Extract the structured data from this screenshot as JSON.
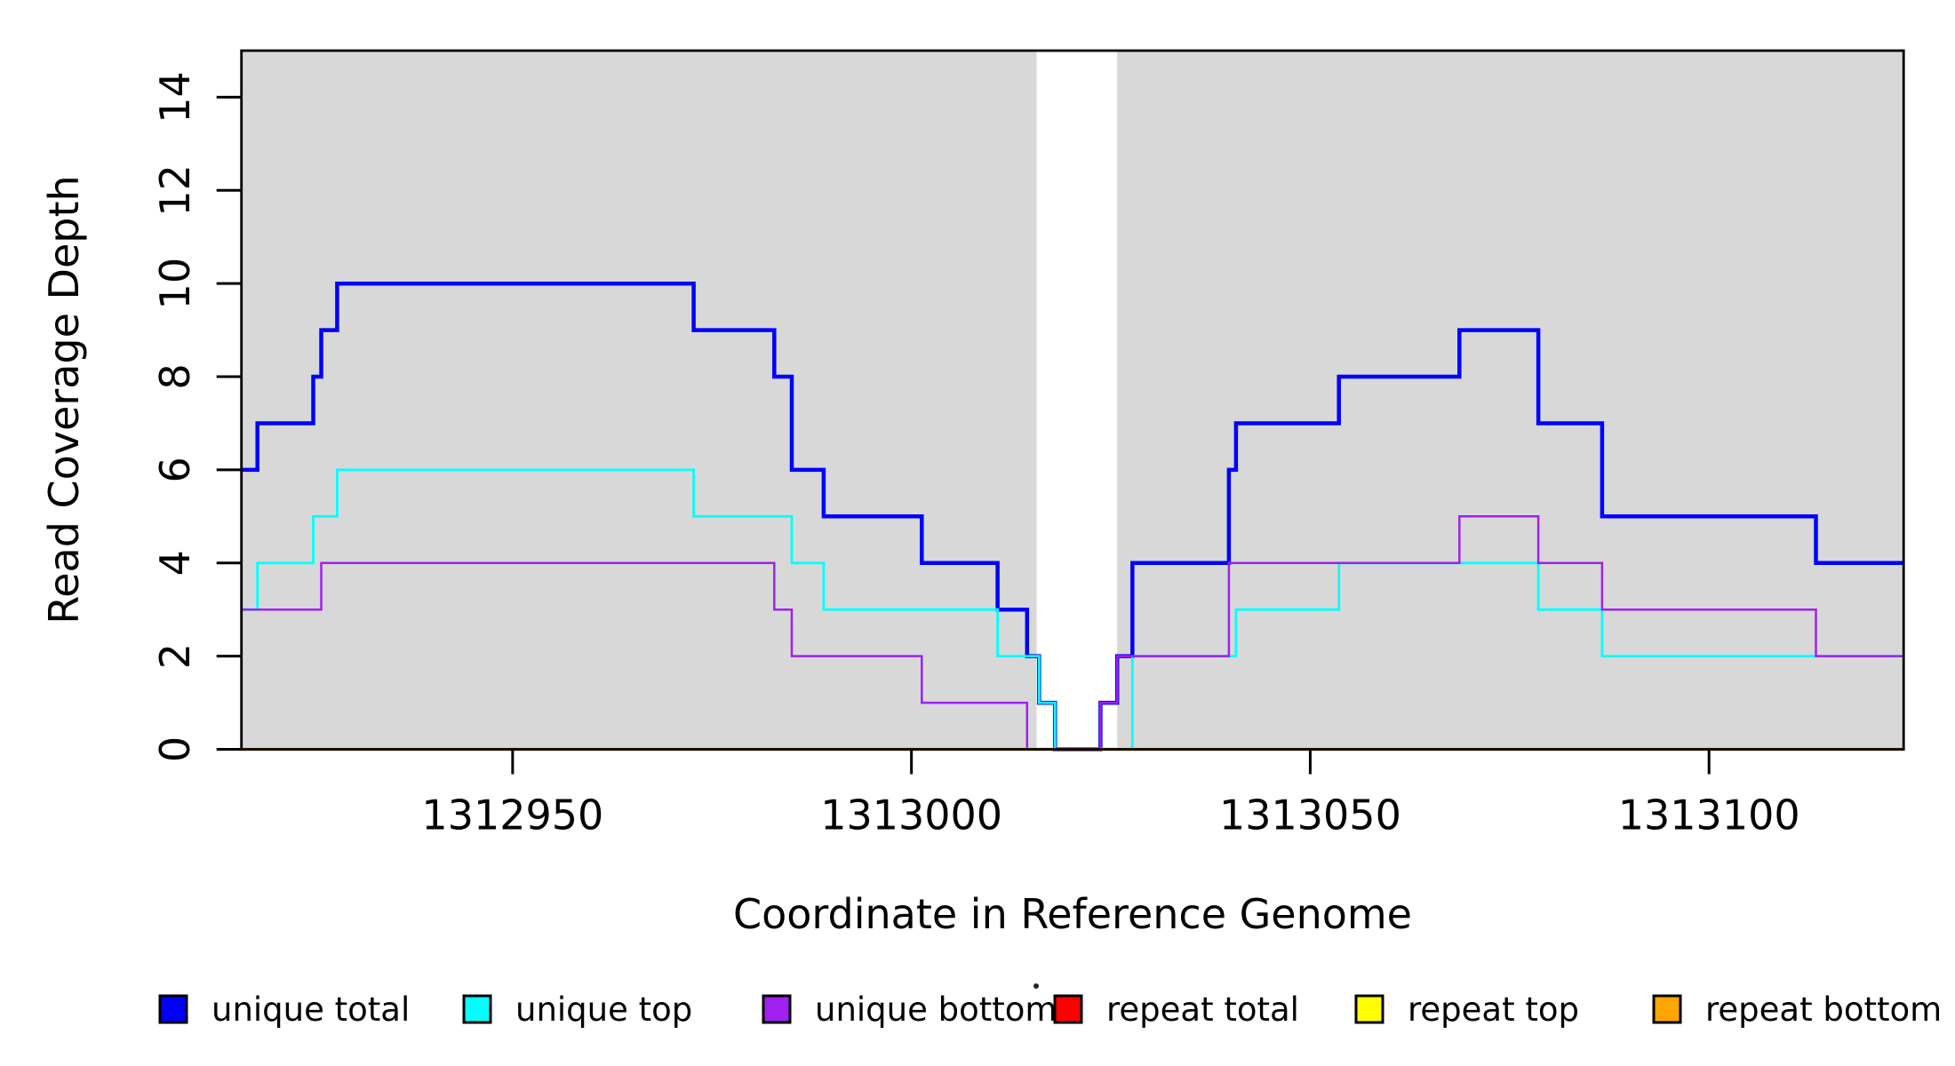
{
  "chart_data": {
    "type": "line",
    "subtype": "step-coverage",
    "title": "",
    "xlabel": "Coordinate in Reference Genome",
    "ylabel": "Read Coverage Depth",
    "xlim": [
      1312916,
      1313124.4
    ],
    "ylim": [
      0,
      15
    ],
    "xticks": [
      1312950,
      1313000,
      1313050,
      1313100
    ],
    "yticks": [
      0,
      2,
      4,
      6,
      8,
      10,
      12,
      14
    ],
    "grid": "off",
    "legend_position": "bottom",
    "background_color": "#D8D8D8",
    "shaded_regions": [
      [
        1312916,
        1313015.7
      ],
      [
        1313025.8,
        1313124.4
      ]
    ],
    "unshaded_gap": [
      1313015.7,
      1313025.8
    ],
    "series": [
      {
        "name": "unique total",
        "color": "#0000FF",
        "line_width": 4.5,
        "points": [
          [
            1312916,
            6
          ],
          [
            1312918,
            7
          ],
          [
            1312925,
            8
          ],
          [
            1312926,
            9
          ],
          [
            1312928,
            10
          ],
          [
            1312972.7,
            9
          ],
          [
            1312982.8,
            8
          ],
          [
            1312985,
            6
          ],
          [
            1312989,
            5
          ],
          [
            1313001.3,
            4
          ],
          [
            1313010.8,
            3
          ],
          [
            1313014.5,
            2
          ],
          [
            1313016,
            1
          ],
          [
            1313018,
            0
          ],
          [
            1313023.7,
            1
          ],
          [
            1313025.8,
            2
          ],
          [
            1313027.7,
            4
          ],
          [
            1313039.8,
            6
          ],
          [
            1313040.7,
            7
          ],
          [
            1313053.6,
            8
          ],
          [
            1313068.7,
            9
          ],
          [
            1313078.6,
            7
          ],
          [
            1313086.6,
            5
          ],
          [
            1313113.4,
            4
          ],
          [
            1313124.4,
            4
          ]
        ]
      },
      {
        "name": "unique top",
        "color": "#00FFFF",
        "line_width": 2.8,
        "points": [
          [
            1312916,
            3
          ],
          [
            1312918,
            4
          ],
          [
            1312925,
            5
          ],
          [
            1312928,
            6
          ],
          [
            1312972.7,
            5
          ],
          [
            1312985,
            4
          ],
          [
            1312989,
            3
          ],
          [
            1313010.8,
            2
          ],
          [
            1313016,
            1
          ],
          [
            1313018,
            0
          ],
          [
            1313027.7,
            2
          ],
          [
            1313040.7,
            3
          ],
          [
            1313053.6,
            4
          ],
          [
            1313078.6,
            3
          ],
          [
            1313086.6,
            2
          ],
          [
            1313124.4,
            2
          ]
        ]
      },
      {
        "name": "unique bottom",
        "color": "#A020F0",
        "line_width": 2.5,
        "points": [
          [
            1312916,
            3
          ],
          [
            1312926,
            4
          ],
          [
            1312982.8,
            3
          ],
          [
            1312985,
            2
          ],
          [
            1313001.3,
            1
          ],
          [
            1313014.5,
            0
          ],
          [
            1313023.7,
            1
          ],
          [
            1313025.8,
            2
          ],
          [
            1313039.8,
            4
          ],
          [
            1313068.7,
            5
          ],
          [
            1313078.6,
            4
          ],
          [
            1313086.6,
            3
          ],
          [
            1313113.4,
            2
          ],
          [
            1313124.4,
            2
          ]
        ]
      },
      {
        "name": "repeat total",
        "color": "#FF0000",
        "line_width": 2.5,
        "points": [
          [
            1312916,
            0
          ],
          [
            1313124.4,
            0
          ]
        ]
      },
      {
        "name": "repeat top",
        "color": "#FFFF00",
        "line_width": 2.5,
        "points": [
          [
            1312916,
            0
          ],
          [
            1313124.4,
            0
          ]
        ]
      },
      {
        "name": "repeat bottom",
        "color": "#FFA500",
        "line_width": 3.5,
        "points": [
          [
            1312916,
            0
          ],
          [
            1313124.4,
            0
          ]
        ]
      }
    ],
    "legend": [
      {
        "label": "unique total",
        "color": "#0000FF"
      },
      {
        "label": "unique top",
        "color": "#00FFFF"
      },
      {
        "label": "unique bottom",
        "color": "#A020F0"
      },
      {
        "label": "repeat total",
        "color": "#FF0000"
      },
      {
        "label": "repeat top",
        "color": "#FFFF00"
      },
      {
        "label": "repeat bottom",
        "color": "#FFA500"
      }
    ]
  }
}
